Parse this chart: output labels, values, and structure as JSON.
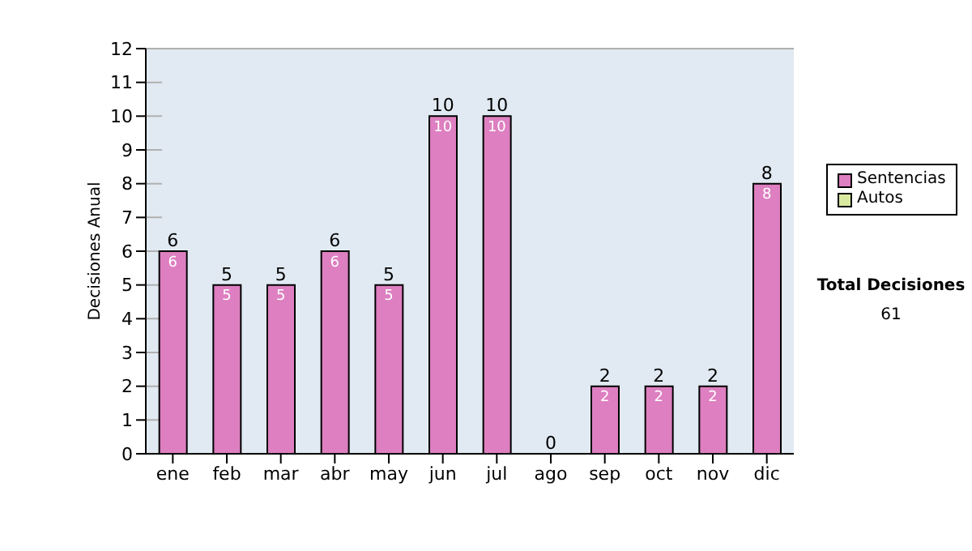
{
  "chart_data": {
    "type": "bar",
    "stacked": true,
    "ylabel": "Decisiones Anual",
    "categories": [
      "ene",
      "feb",
      "mar",
      "abr",
      "may",
      "jun",
      "jul",
      "ago",
      "sep",
      "oct",
      "nov",
      "dic"
    ],
    "series": [
      {
        "name": "Sentencias",
        "color": "#dd7fc0",
        "values": [
          6,
          5,
          5,
          6,
          5,
          10,
          10,
          0,
          2,
          2,
          2,
          8
        ],
        "value_labels": [
          "6",
          "5",
          "5",
          "6",
          "5",
          "10",
          "10",
          null,
          "2",
          "2",
          "2",
          "8"
        ]
      },
      {
        "name": "Autos",
        "color": "#d9eaa0",
        "values": [
          0,
          0,
          0,
          0,
          0,
          0,
          0,
          0,
          0,
          0,
          0,
          0
        ]
      }
    ],
    "totals": [
      "6",
      "5",
      "5",
      "6",
      "5",
      "10",
      "10",
      "0",
      "2",
      "2",
      "2",
      "8"
    ],
    "ylim": [
      0,
      12
    ],
    "yticks": [
      0,
      1,
      2,
      3,
      4,
      5,
      6,
      7,
      8,
      9,
      10,
      11,
      12
    ],
    "grid": "y",
    "legend": "right",
    "annotations": [
      "Total Decisiones",
      "61"
    ]
  }
}
